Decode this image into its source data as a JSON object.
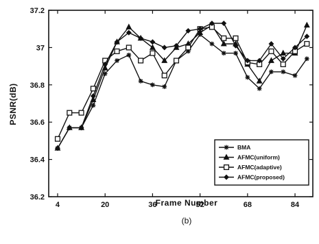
{
  "chart_data": {
    "type": "line",
    "xlabel": "Frame Number",
    "ylabel": "PSNR(dB)",
    "caption": "(b)",
    "xlim": [
      1,
      90
    ],
    "ylim": [
      36.2,
      37.2
    ],
    "xticks": [
      4,
      20,
      36,
      52,
      68,
      84
    ],
    "xtick_labels": [
      "4",
      "20",
      "36",
      "52",
      "68",
      "84"
    ],
    "yticks": [
      36.2,
      36.4,
      36.6,
      36.8,
      37.0,
      37.2
    ],
    "ytick_labels": [
      "36.2",
      "36.4",
      "36.6",
      "36.8",
      "37",
      "37.2"
    ],
    "legend_position": "bottom-right",
    "x": [
      4,
      8,
      12,
      16,
      20,
      24,
      28,
      32,
      36,
      40,
      44,
      48,
      52,
      56,
      60,
      64,
      68,
      72,
      76,
      80,
      84,
      88
    ],
    "series": [
      {
        "name": "BMA",
        "marker": "star",
        "values": [
          36.46,
          36.57,
          36.57,
          36.69,
          36.86,
          36.93,
          36.96,
          36.82,
          36.8,
          36.79,
          36.93,
          36.98,
          37.07,
          37.02,
          36.97,
          36.97,
          36.84,
          36.78,
          36.87,
          36.87,
          36.85,
          36.94
        ]
      },
      {
        "name": "AFMC(uniform)",
        "marker": "triangle",
        "values": [
          36.46,
          36.57,
          36.57,
          36.72,
          36.89,
          37.03,
          37.11,
          37.05,
          37.0,
          36.93,
          37.0,
          37.02,
          37.08,
          37.12,
          37.02,
          37.02,
          36.91,
          36.82,
          36.93,
          36.97,
          36.97,
          37.12
        ]
      },
      {
        "name": "AFMC(adaptive)",
        "marker": "square",
        "values": [
          36.51,
          36.65,
          36.65,
          36.78,
          36.93,
          36.98,
          37.0,
          36.93,
          36.97,
          36.85,
          36.93,
          37.0,
          37.1,
          37.11,
          37.05,
          37.05,
          36.92,
          36.91,
          36.98,
          36.91,
          36.98,
          37.02
        ]
      },
      {
        "name": "AFMC(proposed)",
        "marker": "diamond",
        "values": [
          36.46,
          36.57,
          36.57,
          36.74,
          36.91,
          37.03,
          37.08,
          37.05,
          37.03,
          37.0,
          37.01,
          37.09,
          37.1,
          37.13,
          37.13,
          37.01,
          36.93,
          36.93,
          37.02,
          36.94,
          37.0,
          37.06
        ]
      }
    ]
  }
}
